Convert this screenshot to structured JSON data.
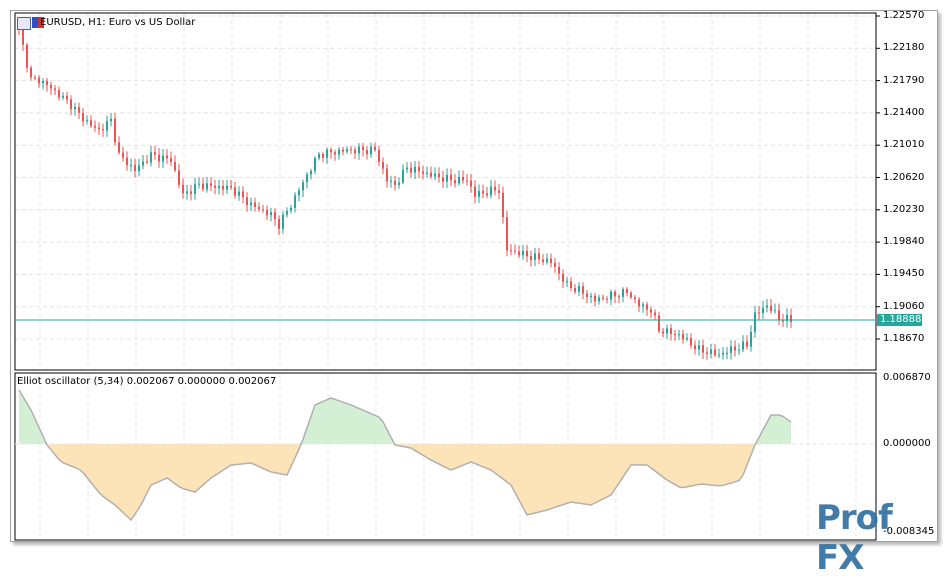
{
  "chart": {
    "title": "EURUSD, H1:  Euro vs US Dollar",
    "current_price": "1.18888",
    "price_axis_labels": [
      "1.22570",
      "1.22180",
      "1.21790",
      "1.21400",
      "1.21010",
      "1.20620",
      "1.20230",
      "1.19840",
      "1.19450",
      "1.19060",
      "1.18670"
    ],
    "price_range": [
      1.1852,
      1.2257
    ],
    "bar_count": 194,
    "price_path": [
      [
        0,
        1.224
      ],
      [
        2,
        1.22
      ],
      [
        3,
        1.218
      ],
      [
        5,
        1.218
      ],
      [
        8,
        1.217
      ],
      [
        10,
        1.2162
      ],
      [
        13,
        1.215
      ],
      [
        15,
        1.2138
      ],
      [
        18,
        1.2125
      ],
      [
        20,
        1.2119
      ],
      [
        23,
        1.2131
      ],
      [
        25,
        1.2089
      ],
      [
        29,
        1.2071
      ],
      [
        33,
        1.2089
      ],
      [
        38,
        1.2083
      ],
      [
        41,
        1.2041
      ],
      [
        45,
        1.2053
      ],
      [
        53,
        1.2049
      ],
      [
        58,
        1.2029
      ],
      [
        63,
        1.2017
      ],
      [
        65,
        1.2005
      ],
      [
        68,
        1.2029
      ],
      [
        72,
        1.2065
      ],
      [
        75,
        1.209
      ],
      [
        82,
        1.2095
      ],
      [
        87,
        1.2095
      ],
      [
        89,
        1.2095
      ],
      [
        92,
        1.2059
      ],
      [
        94,
        1.2053
      ],
      [
        97,
        1.2074
      ],
      [
        103,
        1.2065
      ],
      [
        108,
        1.2059
      ],
      [
        112,
        1.2059
      ],
      [
        114,
        1.2041
      ],
      [
        119,
        1.2047
      ],
      [
        120,
        1.2047
      ],
      [
        122,
        1.1975
      ],
      [
        127,
        1.1968
      ],
      [
        133,
        1.196
      ],
      [
        137,
        1.1932
      ],
      [
        140,
        1.1926
      ],
      [
        144,
        1.1914
      ],
      [
        152,
        1.1924
      ],
      [
        155,
        1.1908
      ],
      [
        158,
        1.1902
      ],
      [
        160,
        1.1878
      ],
      [
        165,
        1.1872
      ],
      [
        170,
        1.1854
      ],
      [
        175,
        1.1848
      ],
      [
        178,
        1.1854
      ],
      [
        182,
        1.186
      ],
      [
        184,
        1.1896
      ],
      [
        187,
        1.1908
      ],
      [
        190,
        1.1892
      ],
      [
        193,
        1.189
      ]
    ]
  },
  "oscillator": {
    "title": "Elliot oscillator (5,34) 0.002067 0.000000 0.002067",
    "axis_labels": [
      "0.006870",
      "0.000000",
      "-0.008345"
    ],
    "range": [
      -0.008345,
      0.00687
    ],
    "values": [
      [
        0,
        0.00562
      ],
      [
        3,
        0.00354
      ],
      [
        7,
        -0.0001
      ],
      [
        10.5,
        -0.00187
      ],
      [
        15.5,
        -0.00271
      ],
      [
        20.5,
        -0.00531
      ],
      [
        24,
        -0.00635
      ],
      [
        28,
        -0.00791
      ],
      [
        30.5,
        -0.00635
      ],
      [
        33,
        -0.00427
      ],
      [
        37,
        -0.00354
      ],
      [
        40.5,
        -0.00458
      ],
      [
        44,
        -0.005
      ],
      [
        48,
        -0.00354
      ],
      [
        53,
        -0.00219
      ],
      [
        58,
        -0.00198
      ],
      [
        63,
        -0.00291
      ],
      [
        67,
        -0.00323
      ],
      [
        70.5,
        -0.0001
      ],
      [
        74,
        0.00406
      ],
      [
        78,
        0.00479
      ],
      [
        83,
        0.00406
      ],
      [
        90.5,
        0.00271
      ],
      [
        94,
        -0.0001
      ],
      [
        98,
        -0.00042
      ],
      [
        103,
        -0.00167
      ],
      [
        108,
        -0.00271
      ],
      [
        113,
        -0.00187
      ],
      [
        118,
        -0.00271
      ],
      [
        123,
        -0.00427
      ],
      [
        127,
        -0.00739
      ],
      [
        132,
        -0.00687
      ],
      [
        138,
        -0.00604
      ],
      [
        143,
        -0.00635
      ],
      [
        148,
        -0.00531
      ],
      [
        153,
        -0.00219
      ],
      [
        157,
        -0.00219
      ],
      [
        162,
        -0.00375
      ],
      [
        165.5,
        -0.00458
      ],
      [
        170.5,
        -0.00416
      ],
      [
        175.5,
        -0.00437
      ],
      [
        180.5,
        -0.00375
      ],
      [
        184,
        -0.0001
      ],
      [
        188,
        0.00302
      ],
      [
        190.5,
        0.00302
      ],
      [
        193,
        0.00229
      ]
    ]
  },
  "colors": {
    "bull": "#26a69a",
    "bear": "#ef5350",
    "pos_fill": "#d4f0d4",
    "neg_fill": "#fde3b8",
    "line": "#b0b0b0",
    "grid": "#e4e4e4",
    "current": "#26a69a"
  },
  "logo": "Prof FX"
}
